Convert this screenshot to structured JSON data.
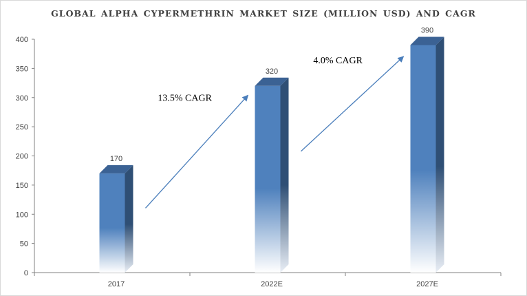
{
  "chart_data": {
    "type": "bar",
    "title": "GLOBAL ALPHA CYPERMETHRIN MARKET SIZE (MILLION USD) AND CAGR",
    "xlabel": "",
    "ylabel": "",
    "categories": [
      "2017",
      "2022E",
      "2027E"
    ],
    "values": [
      170,
      320,
      390
    ],
    "ylim": [
      0,
      400
    ],
    "yticks": [
      0,
      50,
      100,
      150,
      200,
      250,
      300,
      350,
      400
    ],
    "grid": false,
    "annotations": [
      {
        "text": "13.5% CAGR",
        "from": "2017",
        "to": "2022E"
      },
      {
        "text": "4.0% CAGR",
        "from": "2022E",
        "to": "2027E"
      }
    ]
  },
  "colors": {
    "bar_front": "#4f81bd",
    "bar_side": "#2f4f75",
    "bar_top": "#3b6294",
    "arrow": "#4a7ebb",
    "axis": "#808080"
  }
}
